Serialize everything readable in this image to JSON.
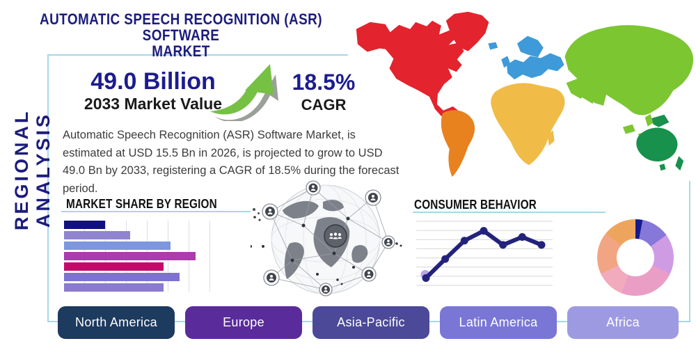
{
  "title": {
    "line1": "AUTOMATIC SPEECH RECOGNITION (ASR) SOFTWARE",
    "line2": "MARKET"
  },
  "sidebar": {
    "label": "REGIONAL ANALYSIS"
  },
  "stats": {
    "market_value": "49.0 Billion",
    "market_value_label": "2033 Market Value",
    "cagr_value": "18.5%",
    "cagr_label": "CAGR"
  },
  "description": "Automatic Speech Recognition (ASR) Software Market, is estimated at USD 15.5 Bn in 2026, is projected to grow to USD 49.0 Bn by 2033, registering a CAGR of 18.5% during the forecast period.",
  "sections": {
    "market_share": "MARKET SHARE BY REGION",
    "consumer_behavior": "CONSUMER BEHAVIOR"
  },
  "chart_data": [
    {
      "id": "market-share-by-region",
      "type": "bar",
      "orientation": "horizontal",
      "title": "MARKET SHARE BY REGION",
      "categories": [
        "",
        "",
        "",
        "",
        "",
        "",
        ""
      ],
      "values_pct_of_axis": [
        28,
        45,
        73,
        90,
        68,
        79,
        68
      ],
      "bar_colors": [
        "#10107e",
        "#9084cf",
        "#7d96dd",
        "#ab3cab",
        "#c40a68",
        "#7e72cf",
        "#8a7ad0"
      ],
      "grid": true,
      "axis_labels_visible": false
    },
    {
      "id": "consumer-behavior",
      "type": "line",
      "title": "CONSUMER BEHAVIOR",
      "x": [
        1,
        2,
        3,
        4,
        5,
        6,
        7
      ],
      "values": [
        12,
        43,
        73,
        89,
        66,
        79,
        66
      ],
      "ylim": [
        0,
        100
      ],
      "line_color": "#23237d",
      "marker_color": "#23237d",
      "first_point_halo_color": "#b9a6e8",
      "grid": true,
      "gridline_count": 8,
      "grid_color": "#d6d6d6"
    },
    {
      "id": "regional-share-donut",
      "type": "pie",
      "donut": true,
      "values_pct": [
        3,
        12,
        17,
        24,
        12,
        18,
        14
      ],
      "colors": [
        "#151a8c",
        "#8678d8",
        "#cf9ce4",
        "#ea9ec6",
        "#f2abbd",
        "#f2a583",
        "#eda55e"
      ],
      "labels_visible": false
    }
  ],
  "map": {
    "regions": [
      {
        "name": "North America",
        "color": "#e3232d"
      },
      {
        "name": "South America",
        "color": "#e8821f"
      },
      {
        "name": "Europe",
        "color": "#3e9ad9"
      },
      {
        "name": "Africa",
        "color": "#f0bc47"
      },
      {
        "name": "Asia",
        "color": "#7cc632"
      },
      {
        "name": "Oceania",
        "color": "#17914b"
      }
    ]
  },
  "region_buttons": [
    {
      "label": "North America",
      "color": "#1d3a5f"
    },
    {
      "label": "Europe",
      "color": "#5a2b9a"
    },
    {
      "label": "Asia-Pacific",
      "color": "#4c4999"
    },
    {
      "label": "Latin America",
      "color": "#7a76d6"
    },
    {
      "label": "Africa",
      "color": "#9e9ae2"
    }
  ],
  "theme": {
    "navy": "#1c1c7d",
    "box_border": "#a5d8e6",
    "body_text": "#3c3c3c",
    "arrow_green": "#76c043",
    "arrow_shadow": "#8a8f86"
  }
}
